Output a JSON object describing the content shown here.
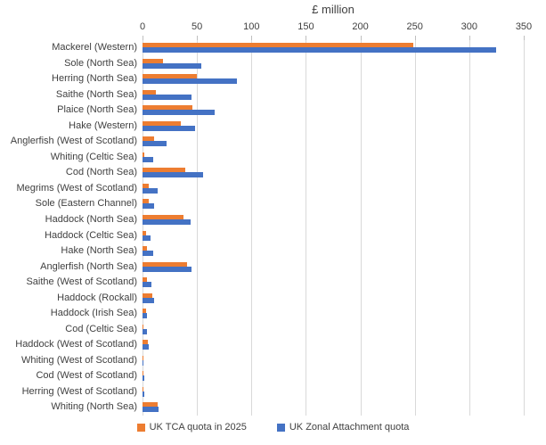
{
  "chart_data": {
    "type": "bar",
    "orientation": "horizontal",
    "title": "£ million",
    "xlabel": "£ million",
    "xlim": [
      0,
      350
    ],
    "x_ticks": [
      0,
      50,
      100,
      150,
      200,
      250,
      300,
      350
    ],
    "grid": "vertical",
    "legend_position": "bottom",
    "categories": [
      "Mackerel (Western)",
      "Sole (North Sea)",
      "Herring (North Sea)",
      "Saithe (North Sea)",
      "Plaice (North Sea)",
      "Hake (Western)",
      "Anglerfish (West of Scotland)",
      "Whiting (Celtic Sea)",
      "Cod (North Sea)",
      "Megrims (West of Scotland)",
      "Sole (Eastern Channel)",
      "Haddock (North Sea)",
      "Haddock (Celtic Sea)",
      "Hake (North Sea)",
      "Anglerfish (North Sea)",
      "Saithe (West of Scotland)",
      "Haddock (Rockall)",
      "Haddock (Irish Sea)",
      "Cod (Celtic Sea)",
      "Haddock (West of Scotland)",
      "Whiting (West of Scotland)",
      "Cod (West of Scotland)",
      "Herring (West of Scotland)",
      "Whiting (North Sea)"
    ],
    "series": [
      {
        "name": "UK TCA quota in 2025",
        "color": "#ED7D31",
        "values": [
          249,
          19,
          50,
          12,
          46,
          35,
          11,
          2,
          39,
          6,
          6,
          38,
          3,
          4,
          41,
          4,
          9,
          3,
          1,
          5,
          0.3,
          1,
          1,
          14
        ]
      },
      {
        "name": "UK Zonal Attachment quota",
        "color": "#4472C4",
        "values": [
          325,
          54,
          87,
          45,
          66,
          48,
          22,
          10,
          56,
          14,
          11,
          44,
          7,
          10,
          45,
          8,
          11,
          4,
          4,
          6,
          1,
          2,
          2,
          15
        ]
      }
    ],
    "colors": {
      "gridline": "#d9d9d9",
      "text": "#404040"
    }
  }
}
